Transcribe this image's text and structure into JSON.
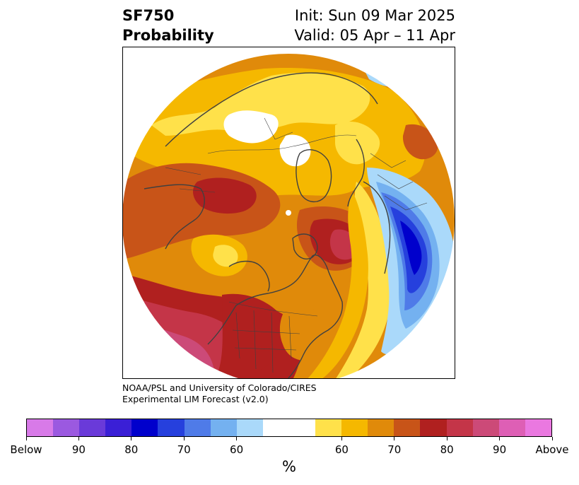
{
  "title": {
    "variable": "SF750",
    "subtitle": "Probability",
    "init": "Init: Sun 09 Mar 2025",
    "valid": "Valid: 05 Apr – 11 Apr"
  },
  "credit": {
    "line1": "NOAA/PSL and University of Colorado/CIRES",
    "line2": "Experimental LIM Forecast (v2.0)"
  },
  "colorbar": {
    "unit": "%",
    "below_colors": [
      "#d87ae8",
      "#9b59e0",
      "#6a3ad9",
      "#3a1fd6",
      "#0000cc",
      "#2640dd",
      "#4f7be8",
      "#74b1f0",
      "#aad9fa"
    ],
    "neutral_color": "#ffffff",
    "above_colors": [
      "#ffe14a",
      "#f5b800",
      "#e08a0a",
      "#c85418",
      "#b0201f",
      "#c43548",
      "#cc4a78",
      "#de5fb5",
      "#ea78e0"
    ],
    "tick_labels": [
      "Below",
      "90",
      "80",
      "70",
      "60",
      "60",
      "70",
      "80",
      "90",
      "Above"
    ]
  },
  "map": {
    "projection": "north-polar-stereographic",
    "colors": {
      "yellow": "#ffe14a",
      "gold": "#f5b800",
      "orange": "#e08a0a",
      "burnt": "#c85418",
      "red": "#b0201f",
      "crimson": "#c43548",
      "rose": "#cc4a78",
      "lightblue": "#aad9fa",
      "skyblue": "#74b1f0",
      "medblue": "#4f7be8",
      "blue": "#2640dd",
      "darkblue": "#0000cc",
      "coast": "#404040"
    }
  }
}
